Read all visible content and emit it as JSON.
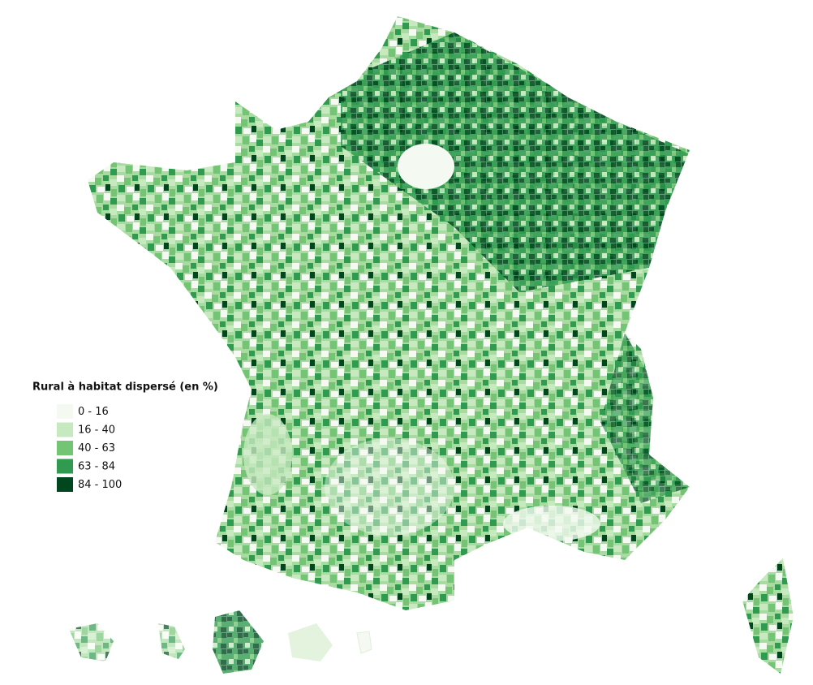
{
  "legend": {
    "title": "Rural à habitat dispersé (en %)",
    "items": [
      {
        "label": "0 - 16",
        "color": "#f4faf1"
      },
      {
        "label": "16 - 40",
        "color": "#c7e9c0"
      },
      {
        "label": "40 - 63",
        "color": "#74c476"
      },
      {
        "label": "63 - 84",
        "color": "#2f9a50"
      },
      {
        "label": "84 - 100",
        "color": "#00461f"
      }
    ]
  }
}
